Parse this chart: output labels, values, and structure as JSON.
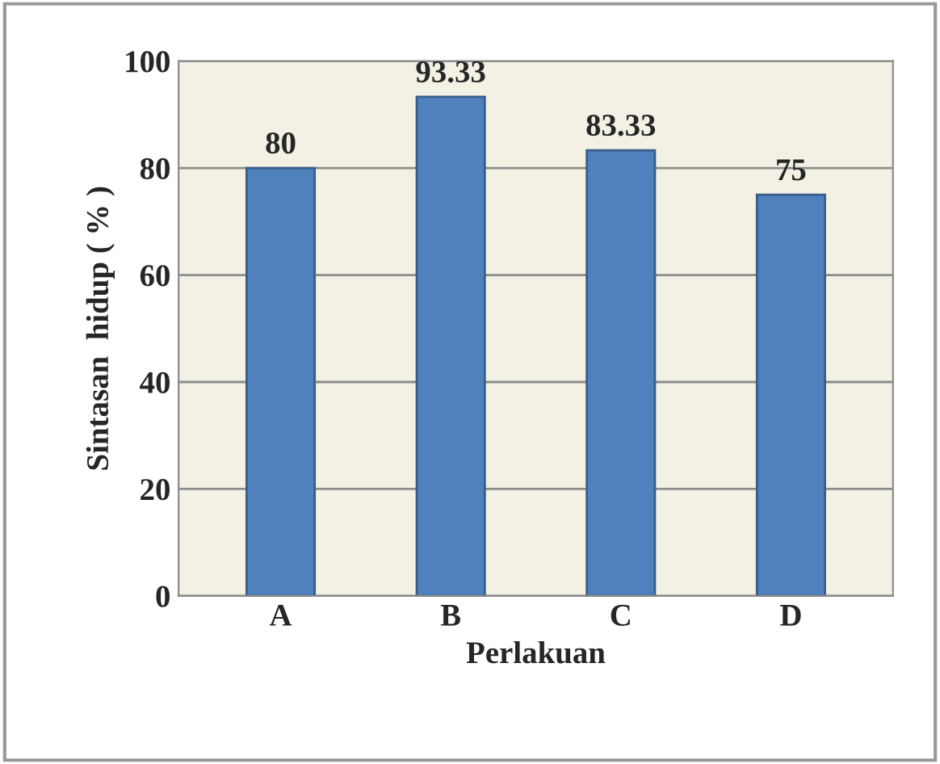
{
  "chart_data": {
    "type": "bar",
    "xlabel": "Perlakuan",
    "ylabel": "Sintasan  hidup ( % )",
    "categories": [
      "A",
      "B",
      "C",
      "D"
    ],
    "values": [
      80,
      93.33,
      83.33,
      75
    ],
    "color": "#4f81bd",
    "ylim": [
      0,
      100
    ],
    "yticks": [
      0,
      20,
      40,
      60,
      80,
      100
    ],
    "grid": "y",
    "data_labels": true
  }
}
